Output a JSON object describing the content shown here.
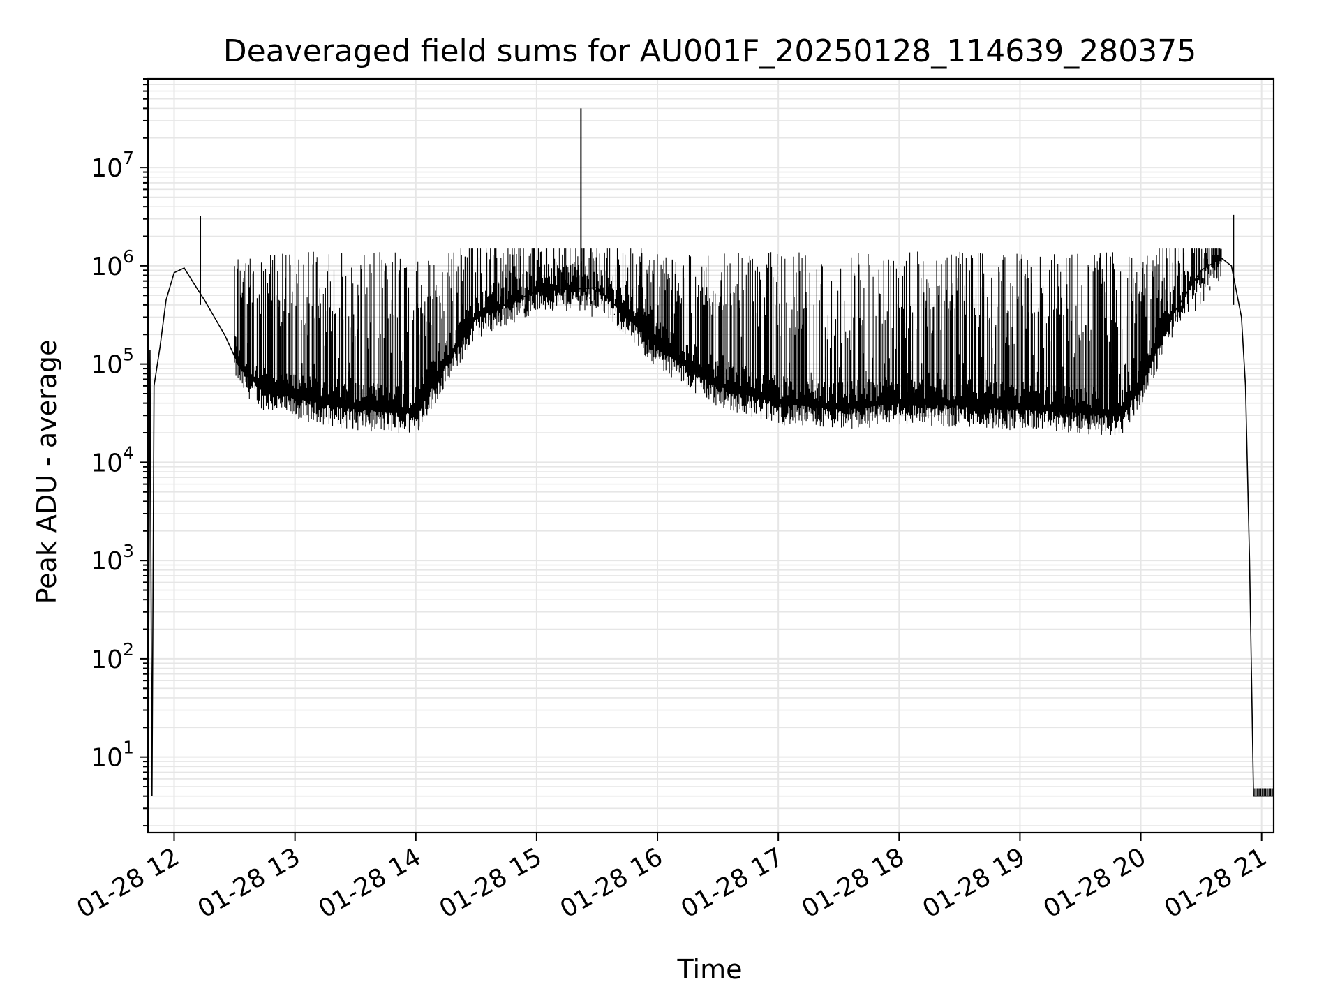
{
  "chart_data": {
    "type": "line",
    "title": "Deaveraged field sums for AU001F_20250128_114639_280375",
    "xlabel": "Time",
    "ylabel": "Peak ADU - average",
    "y_scale": "log",
    "grid": true,
    "x_range": [
      "01-28 11:47",
      "01-28 21:06"
    ],
    "ylim": [
      1.7,
      80000000
    ],
    "x_ticks": [
      "01-28 12",
      "01-28 13",
      "01-28 14",
      "01-28 15",
      "01-28 16",
      "01-28 17",
      "01-28 18",
      "01-28 19",
      "01-28 20",
      "01-28 21"
    ],
    "y_tick_exponents": [
      "1",
      "2",
      "3",
      "4",
      "5",
      "6",
      "7"
    ],
    "y_tick_base": "10",
    "line_color": "#000000",
    "grid_color": "#e6e6e6",
    "series": [
      {
        "x": [
          "01-28 11:47",
          "01-28 11:48",
          "01-28 11:49",
          "01-28 11:50",
          "01-28 11:53",
          "01-28 11:56",
          "01-28 12:00",
          "01-28 12:05",
          "01-28 12:10",
          "01-28 12:15",
          "01-28 12:20",
          "01-28 12:25",
          "01-28 12:30",
          "01-28 12:35",
          "01-28 12:45",
          "01-28 13:00",
          "01-28 13:30",
          "01-28 14:00",
          "01-28 14:30",
          "01-28 15:00",
          "01-28 15:30",
          "01-28 16:00",
          "01-28 16:30",
          "01-28 17:00",
          "01-28 17:30",
          "01-28 18:00",
          "01-28 18:30",
          "01-28 19:00",
          "01-28 19:30",
          "01-28 19:50",
          "01-28 20:00",
          "01-28 20:15",
          "01-28 20:30",
          "01-28 20:40",
          "01-28 20:45",
          "01-28 20:50",
          "01-28 20:52",
          "01-28 20:54",
          "01-28 20:56",
          "01-28 21:06"
        ],
        "y": [
          2,
          140000,
          4,
          60000,
          150000,
          450000,
          850000,
          950000,
          650000,
          450000,
          300000,
          200000,
          120000,
          80000,
          55000,
          45000,
          35000,
          32000,
          300000,
          550000,
          600000,
          150000,
          60000,
          40000,
          35000,
          40000,
          38000,
          35000,
          32000,
          30000,
          60000,
          300000,
          900000,
          1200000,
          1000000,
          300000,
          60000,
          1000,
          4,
          4
        ]
      }
    ],
    "annotations_points": [
      {
        "x": "01-28 12:13",
        "y": 3200000
      },
      {
        "x": "01-28 15:22",
        "y": 40000000
      },
      {
        "x": "01-28 20:46",
        "y": 3300000
      }
    ]
  }
}
